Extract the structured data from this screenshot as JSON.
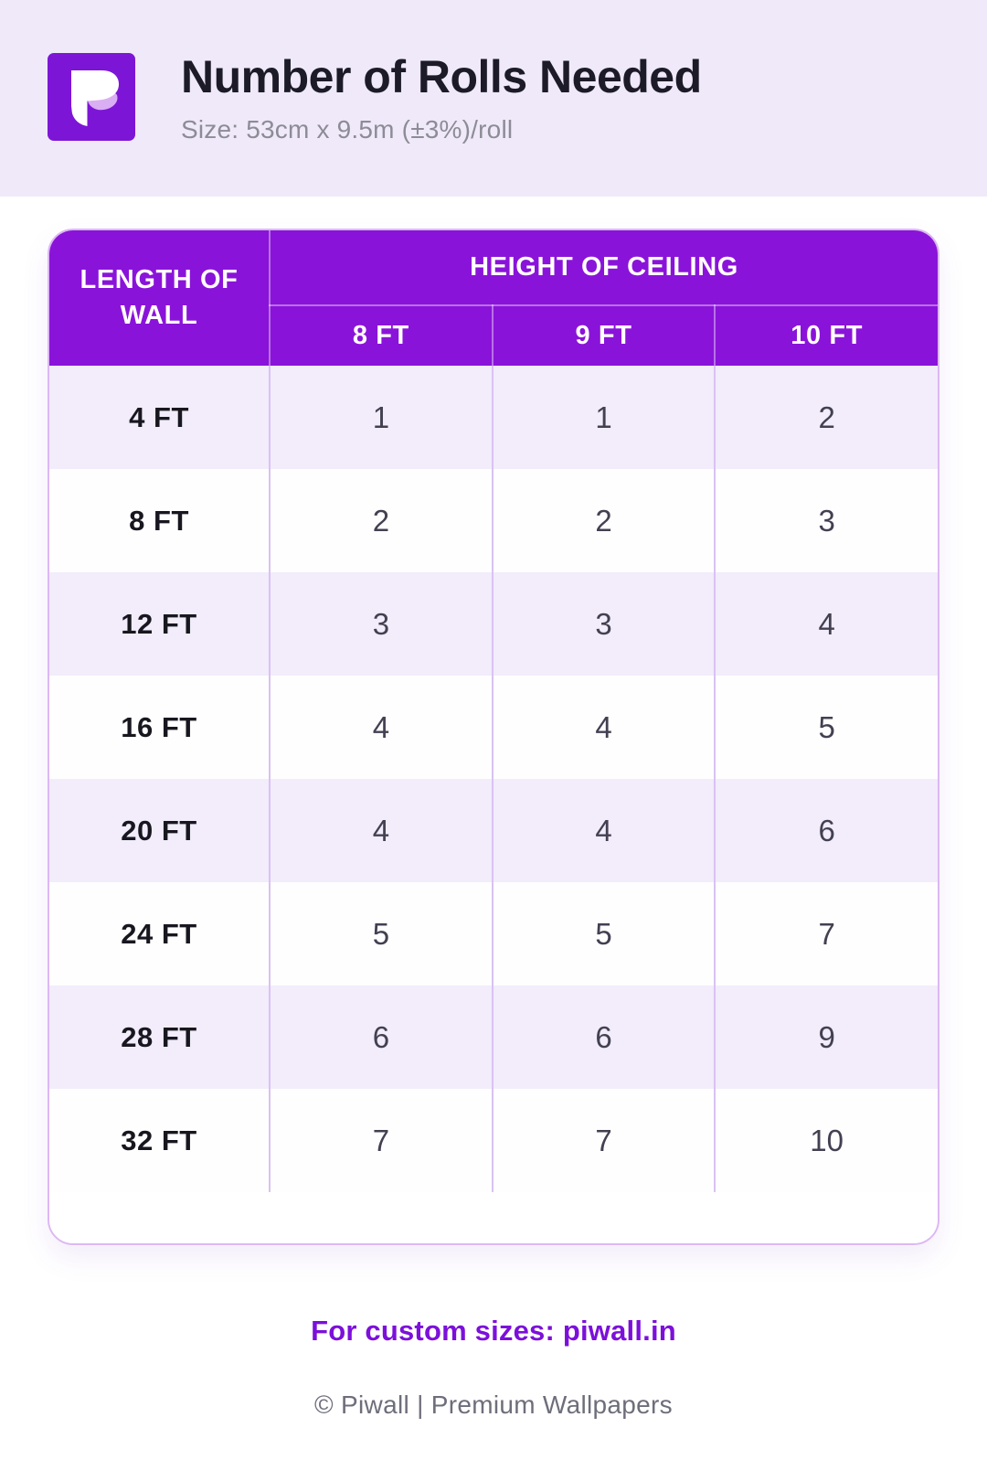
{
  "header": {
    "title": "Number of Rolls Needed",
    "subtitle": "Size: 53cm x 9.5m (±3%)/roll",
    "logo": "piwall-p-logo"
  },
  "chart_data": {
    "type": "table",
    "title": "Number of Rolls Needed",
    "subtitle": "Size: 53cm x 9.5m (±3%)/roll",
    "row_header": "LENGTH OF WALL",
    "column_group_header": "HEIGHT OF CEILING",
    "columns": [
      "8 FT",
      "9 FT",
      "10 FT"
    ],
    "rows": [
      "4 FT",
      "8 FT",
      "12 FT",
      "16 FT",
      "20 FT",
      "24 FT",
      "28 FT",
      "32 FT"
    ],
    "values": [
      [
        1,
        1,
        2
      ],
      [
        2,
        2,
        3
      ],
      [
        3,
        3,
        4
      ],
      [
        4,
        4,
        5
      ],
      [
        4,
        4,
        6
      ],
      [
        5,
        5,
        7
      ],
      [
        6,
        6,
        9
      ],
      [
        7,
        7,
        10
      ]
    ],
    "layout": {
      "striped_rows": true,
      "first_row_shade": "lavender"
    }
  },
  "footer": {
    "custom_link": "For custom sizes: piwall.in",
    "copyright": "© Piwall | Premium Wallpapers"
  },
  "colors": {
    "page_band": "#f0e9f9",
    "header_purple": "#8a13d9",
    "logo_purple": "#7d15d6",
    "logo_accent": "#d9aef2",
    "row_lavender": "#f2ecfb",
    "link_purple": "#7c10da",
    "card_border": "#dcb8f3",
    "body_divider": "#d9c2f3"
  }
}
